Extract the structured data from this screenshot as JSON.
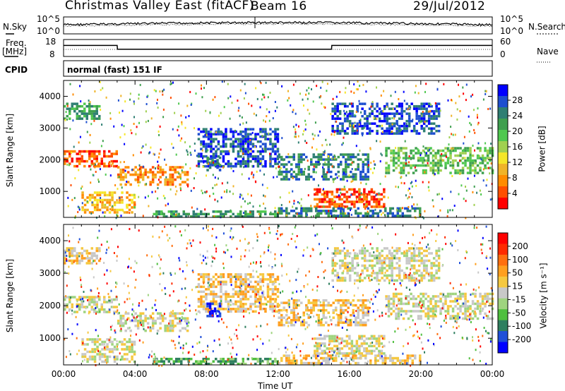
{
  "header": {
    "station": "Christmas Valley East (fitACF)",
    "beam": "Beam 16",
    "date": "29/Jul/2012"
  },
  "strip_labels": {
    "nsky": "N.Sky",
    "nsearch": "N.Search",
    "freq": "Freq.",
    "freq_unit": "[MHz]",
    "nave": "Nave",
    "cpid": "CPID",
    "cpid_value": "normal (fast) 151 IF"
  },
  "colors": {
    "power": [
      "#0000ff",
      "#1e4fd0",
      "#2f7f73",
      "#3f9f4f",
      "#4fc84f",
      "#a0d050",
      "#f5e628",
      "#f0b428",
      "#ff8c00",
      "#ff4f00",
      "#ff0000"
    ],
    "velocity": [
      "#0000ff",
      "#1f4fd8",
      "#2f7f5f",
      "#4fbf3f",
      "#9fd47f",
      "#c8c8c8",
      "#f5c840",
      "#ff9f1f",
      "#ff6f0f",
      "#ff2a00",
      "#ff0000"
    ]
  },
  "chart_data": [
    {
      "type": "line",
      "name": "noise",
      "ylabel_left": "N.Sky",
      "ylabel_right": "N.Search",
      "yticks_left": [
        "10^5",
        "10^0"
      ],
      "yticks_right": [
        "10^5",
        "10^0"
      ],
      "x": [
        "00:00",
        "04:00",
        "08:00",
        "12:00",
        "16:00",
        "20:00",
        "00:00"
      ]
    },
    {
      "type": "line",
      "name": "frequency",
      "ylabel_left": "Freq. [MHz]",
      "ylabel_right": "Nave",
      "yticks_left": [
        "18",
        "8"
      ],
      "yticks_right": [
        "60",
        "0"
      ],
      "x": [
        "00:00",
        "03:00",
        "03:01",
        "15:00",
        "15:01",
        "24:00"
      ],
      "freq_mhz": [
        14.5,
        14.5,
        12.3,
        12.3,
        14.5,
        14.5
      ]
    },
    {
      "type": "heatmap",
      "name": "power",
      "ylabel": "Slant Range [km]",
      "yticks": [
        "4000",
        "3000",
        "2000",
        "1000"
      ],
      "ylim": [
        180,
        4500
      ],
      "xticks": [
        "00:00",
        "04:00",
        "08:00",
        "12:00",
        "16:00",
        "20:00",
        "00:00"
      ],
      "colorbar_label": "Power [dB]",
      "colorbar_ticks": [
        "28",
        "24",
        "20",
        "16",
        "12",
        "8",
        "4"
      ]
    },
    {
      "type": "heatmap",
      "name": "velocity",
      "ylabel": "Slant Range [km]",
      "yticks": [
        "4000",
        "3000",
        "2000",
        "1000"
      ],
      "ylim": [
        180,
        4500
      ],
      "xticks": [
        "00:00",
        "04:00",
        "08:00",
        "12:00",
        "16:00",
        "20:00",
        "00:00"
      ],
      "xlabel": "Time UT",
      "colorbar_label": "Velocity [m s⁻¹]",
      "colorbar_ticks": [
        "200",
        "100",
        "50",
        "15",
        "-15",
        "-50",
        "-100",
        "-200"
      ]
    }
  ]
}
